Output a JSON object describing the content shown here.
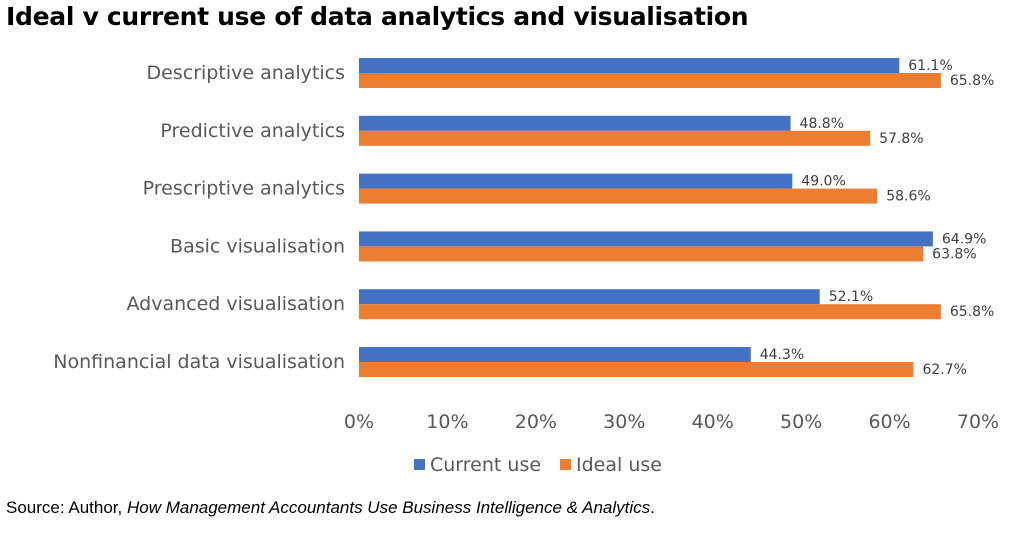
{
  "title": "Ideal v current use of data analytics and visualisation",
  "source": {
    "prefix": "Source: Author, ",
    "italic": "How Management Accountants Use Business Intelligence & Analytics",
    "suffix": "."
  },
  "colors": {
    "current": "#4472C4",
    "ideal": "#ED7D31"
  },
  "chart_data": {
    "type": "bar",
    "orientation": "horizontal",
    "categories": [
      "Descriptive analytics",
      "Predictive analytics",
      "Prescriptive analytics",
      "Basic visualisation",
      "Advanced visualisation",
      "Nonfinancial data visualisation"
    ],
    "series": [
      {
        "name": "Current use",
        "values": [
          61.1,
          48.8,
          49.0,
          64.9,
          52.1,
          44.3
        ],
        "labels": [
          "61.1%",
          "48.8%",
          "49.0%",
          "64.9%",
          "52.1%",
          "44.3%"
        ]
      },
      {
        "name": "Ideal use",
        "values": [
          65.8,
          57.8,
          58.6,
          63.8,
          65.8,
          62.7
        ],
        "labels": [
          "65.8%",
          "57.8%",
          "58.6%",
          "63.8%",
          "65.8%",
          "62.7%"
        ]
      }
    ],
    "xlim": [
      0,
      70
    ],
    "xticks": [
      "0%",
      "10%",
      "20%",
      "30%",
      "40%",
      "50%",
      "60%",
      "70%"
    ],
    "legend_position": "bottom",
    "grid": false
  }
}
